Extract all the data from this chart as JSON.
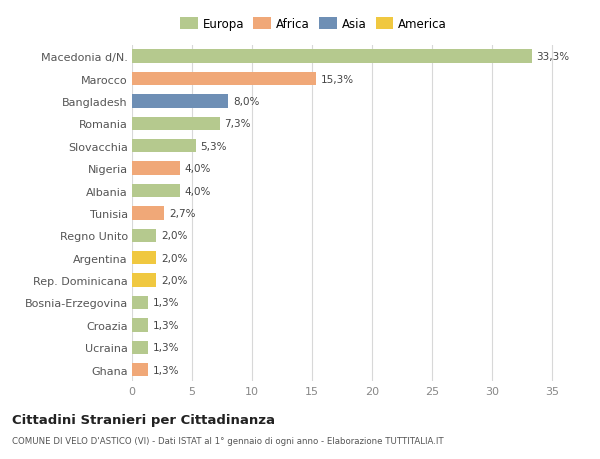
{
  "categories": [
    "Macedonia d/N.",
    "Marocco",
    "Bangladesh",
    "Romania",
    "Slovacchia",
    "Nigeria",
    "Albania",
    "Tunisia",
    "Regno Unito",
    "Argentina",
    "Rep. Dominicana",
    "Bosnia-Erzegovina",
    "Croazia",
    "Ucraina",
    "Ghana"
  ],
  "values": [
    33.3,
    15.3,
    8.0,
    7.3,
    5.3,
    4.0,
    4.0,
    2.7,
    2.0,
    2.0,
    2.0,
    1.3,
    1.3,
    1.3,
    1.3
  ],
  "labels": [
    "33,3%",
    "15,3%",
    "8,0%",
    "7,3%",
    "5,3%",
    "4,0%",
    "4,0%",
    "2,7%",
    "2,0%",
    "2,0%",
    "2,0%",
    "1,3%",
    "1,3%",
    "1,3%",
    "1,3%"
  ],
  "colors": [
    "#b5c98e",
    "#f0a878",
    "#6e8fb5",
    "#b5c98e",
    "#b5c98e",
    "#f0a878",
    "#b5c98e",
    "#f0a878",
    "#b5c98e",
    "#f0c840",
    "#f0c840",
    "#b5c98e",
    "#b5c98e",
    "#b5c98e",
    "#f0a878"
  ],
  "legend_labels": [
    "Europa",
    "Africa",
    "Asia",
    "America"
  ],
  "legend_colors": [
    "#b5c98e",
    "#f0a878",
    "#6e8fb5",
    "#f0c840"
  ],
  "xlim": [
    0,
    36
  ],
  "xticks": [
    0,
    5,
    10,
    15,
    20,
    25,
    30,
    35
  ],
  "title": "Cittadini Stranieri per Cittadinanza",
  "subtitle": "COMUNE DI VELO D'ASTICO (VI) - Dati ISTAT al 1° gennaio di ogni anno - Elaborazione TUTTITALIA.IT",
  "bg_color": "#ffffff",
  "grid_color": "#d8d8d8",
  "bar_height": 0.6
}
